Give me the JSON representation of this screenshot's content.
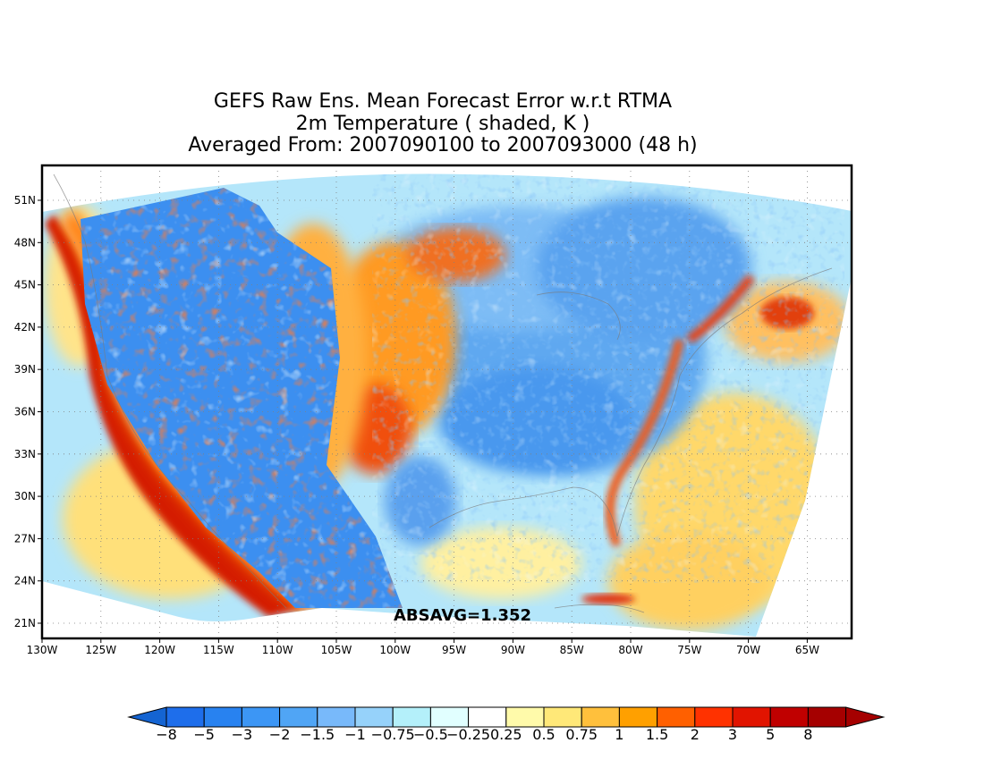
{
  "title": {
    "line1": "GEFS Raw Ens. Mean Forecast Error w.r.t RTMA",
    "line2": "2m Temperature ( shaded, K )",
    "line3": "Averaged From: 2007090100 to 2007093000 (48 h)"
  },
  "map": {
    "lat_labels": [
      "51N",
      "48N",
      "45N",
      "42N",
      "39N",
      "36N",
      "33N",
      "30N",
      "27N",
      "24N",
      "21N"
    ],
    "lon_labels": [
      "130W",
      "125W",
      "120W",
      "115W",
      "110W",
      "105W",
      "100W",
      "95W",
      "90W",
      "85W",
      "80W",
      "75W",
      "70W",
      "65W"
    ],
    "absavg": "ABSAVG=1.352"
  },
  "colorbar": {
    "labels": [
      "−8",
      "−5",
      "−3",
      "−2",
      "−1.5",
      "−1",
      "−0.75",
      "−0.5",
      "−0.25",
      "0.25",
      "0.5",
      "0.75",
      "1",
      "1.5",
      "2",
      "3",
      "5",
      "8"
    ],
    "colors": [
      "#1e6eeb",
      "#2882f0",
      "#3c96f5",
      "#50a5f5",
      "#78b9fa",
      "#96d2fa",
      "#b4f0fa",
      "#e1ffff",
      "#ffffff",
      "#fffaaa",
      "#ffe878",
      "#ffc03c",
      "#ffa000",
      "#ff6000",
      "#ff3200",
      "#e11400",
      "#c00000",
      "#a50000"
    ],
    "end_left": "#1464d2",
    "end_right": "#a50000"
  }
}
